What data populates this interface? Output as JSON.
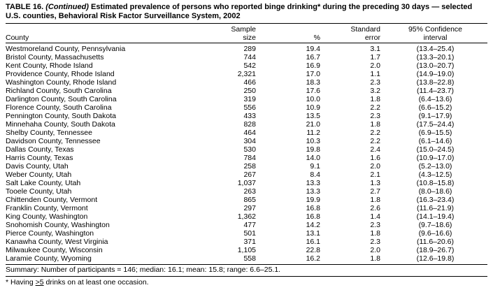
{
  "title": {
    "label": "TABLE 16.",
    "continued": "(Continued)",
    "text": "Estimated prevalence of persons who reported binge drinking* during the preceding 30 days — selected U.S. counties, Behavioral Risk Factor Surveillance System, 2002"
  },
  "table": {
    "columns": {
      "county": "County",
      "sample_line1": "Sample",
      "sample_line2": "size",
      "percent": "%",
      "se_line1": "Standard",
      "se_line2": "error",
      "ci_line1": "95% Confidence",
      "ci_line2": "interval"
    },
    "rows": [
      {
        "county": "Westmoreland County, Pennsylvania",
        "sample": "289",
        "percent": "19.4",
        "se": "3.1",
        "ci": "(13.4–25.4)"
      },
      {
        "county": "Bristol County, Massachusetts",
        "sample": "744",
        "percent": "16.7",
        "se": "1.7",
        "ci": "(13.3–20.1)"
      },
      {
        "county": "Kent County, Rhode Island",
        "sample": "542",
        "percent": "16.9",
        "se": "2.0",
        "ci": "(13.0–20.7)"
      },
      {
        "county": "Providence County, Rhode Island",
        "sample": "2,321",
        "percent": "17.0",
        "se": "1.1",
        "ci": "(14.9–19.0)"
      },
      {
        "county": "Washington County, Rhode Island",
        "sample": "466",
        "percent": "18.3",
        "se": "2.3",
        "ci": "(13.8–22.8)"
      },
      {
        "county": "Richland County, South Carolina",
        "sample": "250",
        "percent": "17.6",
        "se": "3.2",
        "ci": "(11.4–23.7)"
      },
      {
        "county": "Darlington County, South Carolina",
        "sample": "319",
        "percent": "10.0",
        "se": "1.8",
        "ci": "(6.4–13.6)"
      },
      {
        "county": "Florence County, South Carolina",
        "sample": "556",
        "percent": "10.9",
        "se": "2.2",
        "ci": "(6.6–15.2)"
      },
      {
        "county": "Pennington County, South Dakota",
        "sample": "433",
        "percent": "13.5",
        "se": "2.3",
        "ci": "(9.1–17.9)"
      },
      {
        "county": "Minnehaha County, South Dakota",
        "sample": "828",
        "percent": "21.0",
        "se": "1.8",
        "ci": "(17.5–24.4)"
      },
      {
        "county": "Shelby County, Tennessee",
        "sample": "464",
        "percent": "11.2",
        "se": "2.2",
        "ci": "(6.9–15.5)"
      },
      {
        "county": "Davidson County, Tennessee",
        "sample": "304",
        "percent": "10.3",
        "se": "2.2",
        "ci": "(6.1–14.6)"
      },
      {
        "county": "Dallas County, Texas",
        "sample": "530",
        "percent": "19.8",
        "se": "2.4",
        "ci": "(15.0–24.5)"
      },
      {
        "county": "Harris County, Texas",
        "sample": "784",
        "percent": "14.0",
        "se": "1.6",
        "ci": "(10.9–17.0)"
      },
      {
        "county": "Davis County, Utah",
        "sample": "258",
        "percent": "9.1",
        "se": "2.0",
        "ci": "(5.2–13.0)"
      },
      {
        "county": "Weber County, Utah",
        "sample": "267",
        "percent": "8.4",
        "se": "2.1",
        "ci": "(4.3–12.5)"
      },
      {
        "county": "Salt Lake County, Utah",
        "sample": "1,037",
        "percent": "13.3",
        "se": "1.3",
        "ci": "(10.8–15.8)"
      },
      {
        "county": "Tooele County, Utah",
        "sample": "263",
        "percent": "13.3",
        "se": "2.7",
        "ci": "(8.0–18.6)"
      },
      {
        "county": "Chittenden County, Vermont",
        "sample": "865",
        "percent": "19.9",
        "se": "1.8",
        "ci": "(16.3–23.4)"
      },
      {
        "county": "Franklin County, Vermont",
        "sample": "297",
        "percent": "16.8",
        "se": "2.6",
        "ci": "(11.6–21.9)"
      },
      {
        "county": "King County, Washington",
        "sample": "1,362",
        "percent": "16.8",
        "se": "1.4",
        "ci": "(14.1–19.4)"
      },
      {
        "county": "Snohomish County, Washington",
        "sample": "477",
        "percent": "14.2",
        "se": "2.3",
        "ci": "(9.7–18.6)"
      },
      {
        "county": "Pierce County, Washington",
        "sample": "501",
        "percent": "13.1",
        "se": "1.8",
        "ci": "(9.6–16.6)"
      },
      {
        "county": "Kanawha County, West Virginia",
        "sample": "371",
        "percent": "16.1",
        "se": "2.3",
        "ci": "(11.6–20.6)"
      },
      {
        "county": "Milwaukee County, Wisconsin",
        "sample": "1,105",
        "percent": "22.8",
        "se": "2.0",
        "ci": "(18.9–26.7)"
      },
      {
        "county": "Laramie County, Wyoming",
        "sample": "558",
        "percent": "16.2",
        "se": "1.8",
        "ci": "(12.6–19.8)"
      }
    ]
  },
  "footer": {
    "summary": "Summary: Number of participants = 146; median: 16.1; mean: 15.8; range: 6.6–25.1.",
    "footnote_prefix": "* Having ",
    "footnote_underlined": ">5",
    "footnote_suffix": " drinks on at least one occasion."
  }
}
